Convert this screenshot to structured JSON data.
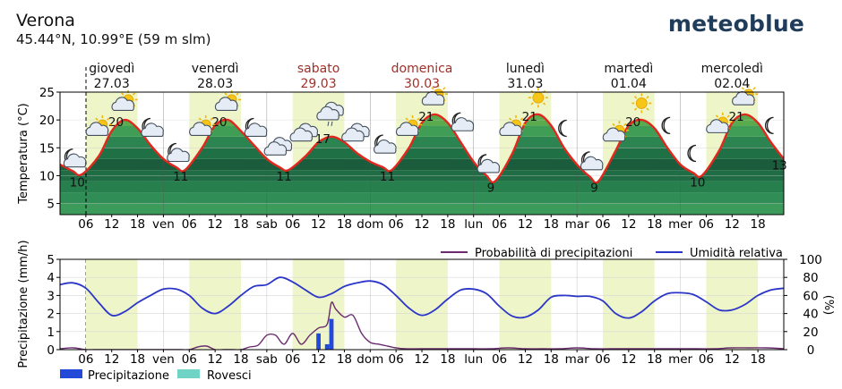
{
  "header": {
    "location": "Verona",
    "coordinates": "45.44°N, 10.99°E (59 m slm)",
    "brand": "meteoblue"
  },
  "colors": {
    "weekend_label": "#a0302a",
    "temperature_line": "#e0281e",
    "precip_prob_line": "#6a2c6e",
    "humidity_line": "#2b36c8",
    "precip_bar": "#2349d8",
    "showers_bar": "#6fd3c5",
    "daylight_band": "#eef5c8"
  },
  "days": [
    {
      "name": "giovedì",
      "date": "27.03",
      "weekend": false
    },
    {
      "name": "venerdì",
      "date": "28.03",
      "weekend": false
    },
    {
      "name": "sabato",
      "date": "29.03",
      "weekend": true
    },
    {
      "name": "domenica",
      "date": "30.03",
      "weekend": true
    },
    {
      "name": "lunedì",
      "date": "31.03",
      "weekend": false
    },
    {
      "name": "martedì",
      "date": "01.04",
      "weekend": false
    },
    {
      "name": "mercoledì",
      "date": "02.04",
      "weekend": false
    }
  ],
  "hour_ticks": [
    "06",
    "12",
    "18",
    "ven",
    "06",
    "12",
    "18",
    "sab",
    "06",
    "12",
    "18",
    "dom",
    "06",
    "12",
    "18",
    "lun",
    "06",
    "12",
    "18",
    "mar",
    "06",
    "12",
    "18",
    "mer",
    "06",
    "12",
    "18"
  ],
  "chart_data": [
    {
      "type": "line",
      "ylabel": "Temperatura (°C)",
      "ylim": [
        3,
        25
      ],
      "yticks": [
        5,
        10,
        15,
        20,
        25
      ],
      "x_unit": "hours from 27.03 00:00",
      "temperature": {
        "x": [
          0,
          3,
          5,
          9,
          12,
          15,
          18,
          21,
          24,
          27,
          29,
          33,
          36,
          39,
          42,
          45,
          48,
          51,
          53,
          57,
          60,
          63,
          66,
          69,
          72,
          75,
          77,
          81,
          84,
          87,
          90,
          93,
          96,
          99,
          101,
          105,
          108,
          111,
          114,
          117,
          120,
          123,
          125,
          129,
          132,
          135,
          138,
          141,
          144,
          147,
          149,
          153,
          156,
          159,
          162,
          165,
          168
        ],
        "y": [
          12,
          10.8,
          10.2,
          13.5,
          18,
          20,
          18.5,
          15.5,
          13,
          11.5,
          11,
          15,
          19,
          20,
          18,
          15.5,
          13,
          11.5,
          11,
          13.5,
          16,
          17,
          16,
          14,
          12.5,
          11.5,
          11,
          15,
          19.5,
          21,
          19.5,
          16,
          12.5,
          10,
          9,
          14,
          19.5,
          21,
          19,
          15,
          12,
          9.8,
          9,
          14.5,
          19,
          20,
          18.5,
          15,
          12,
          10.5,
          10,
          14.5,
          19.5,
          21,
          19.5,
          16,
          13
        ]
      },
      "labels": [
        {
          "x": 4,
          "y": 10,
          "text": "10"
        },
        {
          "x": 13,
          "y": 20,
          "text": "20"
        },
        {
          "x": 28,
          "y": 11,
          "text": "11"
        },
        {
          "x": 37,
          "y": 20,
          "text": "20"
        },
        {
          "x": 52,
          "y": 11,
          "text": "11"
        },
        {
          "x": 61,
          "y": 17,
          "text": "17"
        },
        {
          "x": 76,
          "y": 11,
          "text": "11"
        },
        {
          "x": 85,
          "y": 21,
          "text": "21"
        },
        {
          "x": 100,
          "y": 9,
          "text": "9"
        },
        {
          "x": 109,
          "y": 21,
          "text": "21"
        },
        {
          "x": 124,
          "y": 9,
          "text": "9"
        },
        {
          "x": 133,
          "y": 20,
          "text": "20"
        },
        {
          "x": 148,
          "y": 10,
          "text": "10"
        },
        {
          "x": 157,
          "y": 21,
          "text": "21"
        },
        {
          "x": 167,
          "y": 13,
          "text": "13"
        }
      ],
      "weather_icons": [
        {
          "x": 3,
          "y": 13,
          "name": "moon-cloud-icon"
        },
        {
          "x": 9,
          "y": 18.5,
          "name": "sun-cloud-icon"
        },
        {
          "x": 15,
          "y": 23,
          "name": "sun-cloud-icon"
        },
        {
          "x": 21,
          "y": 18.5,
          "name": "moon-cloud-icon"
        },
        {
          "x": 27,
          "y": 14,
          "name": "moon-cloud-icon"
        },
        {
          "x": 33,
          "y": 18.5,
          "name": "sun-cloud-icon"
        },
        {
          "x": 39,
          "y": 23,
          "name": "sun-cloud-icon"
        },
        {
          "x": 45,
          "y": 18.5,
          "name": "moon-cloud-icon"
        },
        {
          "x": 51,
          "y": 15,
          "name": "cloud-icon"
        },
        {
          "x": 57,
          "y": 17.5,
          "name": "cloud-icon"
        },
        {
          "x": 63,
          "y": 21,
          "name": "cloud-rain-icon"
        },
        {
          "x": 69,
          "y": 17.5,
          "name": "cloud-icon"
        },
        {
          "x": 75,
          "y": 15.5,
          "name": "moon-cloud-icon"
        },
        {
          "x": 81,
          "y": 18.5,
          "name": "sun-cloud-icon"
        },
        {
          "x": 87,
          "y": 24,
          "name": "sun-cloud-icon"
        },
        {
          "x": 93,
          "y": 19.5,
          "name": "moon-cloud-icon"
        },
        {
          "x": 99,
          "y": 12,
          "name": "moon-cloud-icon"
        },
        {
          "x": 105,
          "y": 18.5,
          "name": "sun-cloud-icon"
        },
        {
          "x": 111,
          "y": 24,
          "name": "sun-icon"
        },
        {
          "x": 117,
          "y": 18.5,
          "name": "moon-icon"
        },
        {
          "x": 123,
          "y": 12.5,
          "name": "moon-cloud-icon"
        },
        {
          "x": 129,
          "y": 17.5,
          "name": "sun-cloud-icon"
        },
        {
          "x": 135,
          "y": 23,
          "name": "sun-icon"
        },
        {
          "x": 141,
          "y": 19,
          "name": "moon-icon"
        },
        {
          "x": 147,
          "y": 14,
          "name": "moon-icon"
        },
        {
          "x": 153,
          "y": 19,
          "name": "sun-cloud-icon"
        },
        {
          "x": 159,
          "y": 24,
          "name": "sun-cloud-icon"
        },
        {
          "x": 165,
          "y": 19,
          "name": "moon-icon"
        }
      ]
    },
    {
      "type": "line",
      "ylabel": "Precipitazione (mm/h)",
      "ylim": [
        0,
        5
      ],
      "yticks": [
        0,
        1,
        2,
        3,
        4,
        5
      ],
      "y2label": "(%)",
      "y2lim": [
        0,
        100
      ],
      "y2ticks": [
        0,
        20,
        40,
        60,
        80,
        100
      ],
      "legend": [
        "Probabilità di precipitazioni",
        "Umidità relativa"
      ],
      "bottom_legend": [
        "Precipitazione",
        "Rovesci"
      ],
      "humidity": {
        "x": [
          0,
          3,
          6,
          9,
          12,
          15,
          18,
          21,
          24,
          27,
          30,
          33,
          36,
          39,
          42,
          45,
          48,
          51,
          54,
          57,
          60,
          63,
          66,
          69,
          72,
          75,
          78,
          81,
          84,
          87,
          90,
          93,
          96,
          99,
          102,
          105,
          108,
          111,
          114,
          117,
          120,
          123,
          126,
          129,
          132,
          135,
          138,
          141,
          144,
          147,
          150,
          153,
          156,
          159,
          162,
          165,
          168
        ],
        "y": [
          72,
          74,
          68,
          52,
          38,
          42,
          52,
          60,
          67,
          67,
          60,
          46,
          40,
          48,
          60,
          70,
          72,
          80,
          75,
          66,
          58,
          62,
          70,
          74,
          76,
          72,
          60,
          46,
          38,
          44,
          56,
          66,
          67,
          62,
          48,
          37,
          36,
          44,
          58,
          60,
          59,
          59,
          54,
          40,
          35,
          42,
          54,
          62,
          63,
          61,
          53,
          44,
          44,
          50,
          60,
          66,
          68
        ]
      },
      "precip_probability": {
        "x": [
          0,
          3,
          6,
          8,
          10,
          12,
          14,
          16,
          18,
          20,
          22,
          24,
          26,
          28,
          30,
          32,
          34,
          36,
          38,
          40,
          42,
          44,
          46,
          48,
          50,
          52,
          54,
          56,
          58,
          60,
          62,
          63,
          64,
          66,
          68,
          70,
          72,
          74,
          76,
          78,
          80,
          84,
          88,
          92,
          96,
          100,
          104,
          108,
          112,
          116,
          120,
          124,
          128,
          132,
          136,
          140,
          144,
          148,
          152,
          156,
          160,
          164,
          168
        ],
        "y": [
          1,
          2,
          0,
          0,
          0,
          0,
          0,
          0,
          0,
          0,
          0,
          0,
          0,
          0,
          0,
          3,
          4,
          0,
          0,
          0,
          0,
          3,
          5,
          16,
          16,
          6,
          18,
          6,
          16,
          24,
          28,
          52,
          45,
          36,
          38,
          18,
          8,
          6,
          4,
          2,
          1,
          1,
          1,
          1,
          1,
          1,
          2,
          1,
          1,
          1,
          2,
          1,
          1,
          1,
          1,
          1,
          1,
          1,
          1,
          2,
          2,
          2,
          1
        ]
      },
      "precipitation": {
        "x": [
          60,
          62,
          63
        ],
        "y": [
          0.9,
          0.3,
          1.7
        ]
      },
      "showers": {
        "x": [],
        "y": []
      }
    }
  ]
}
